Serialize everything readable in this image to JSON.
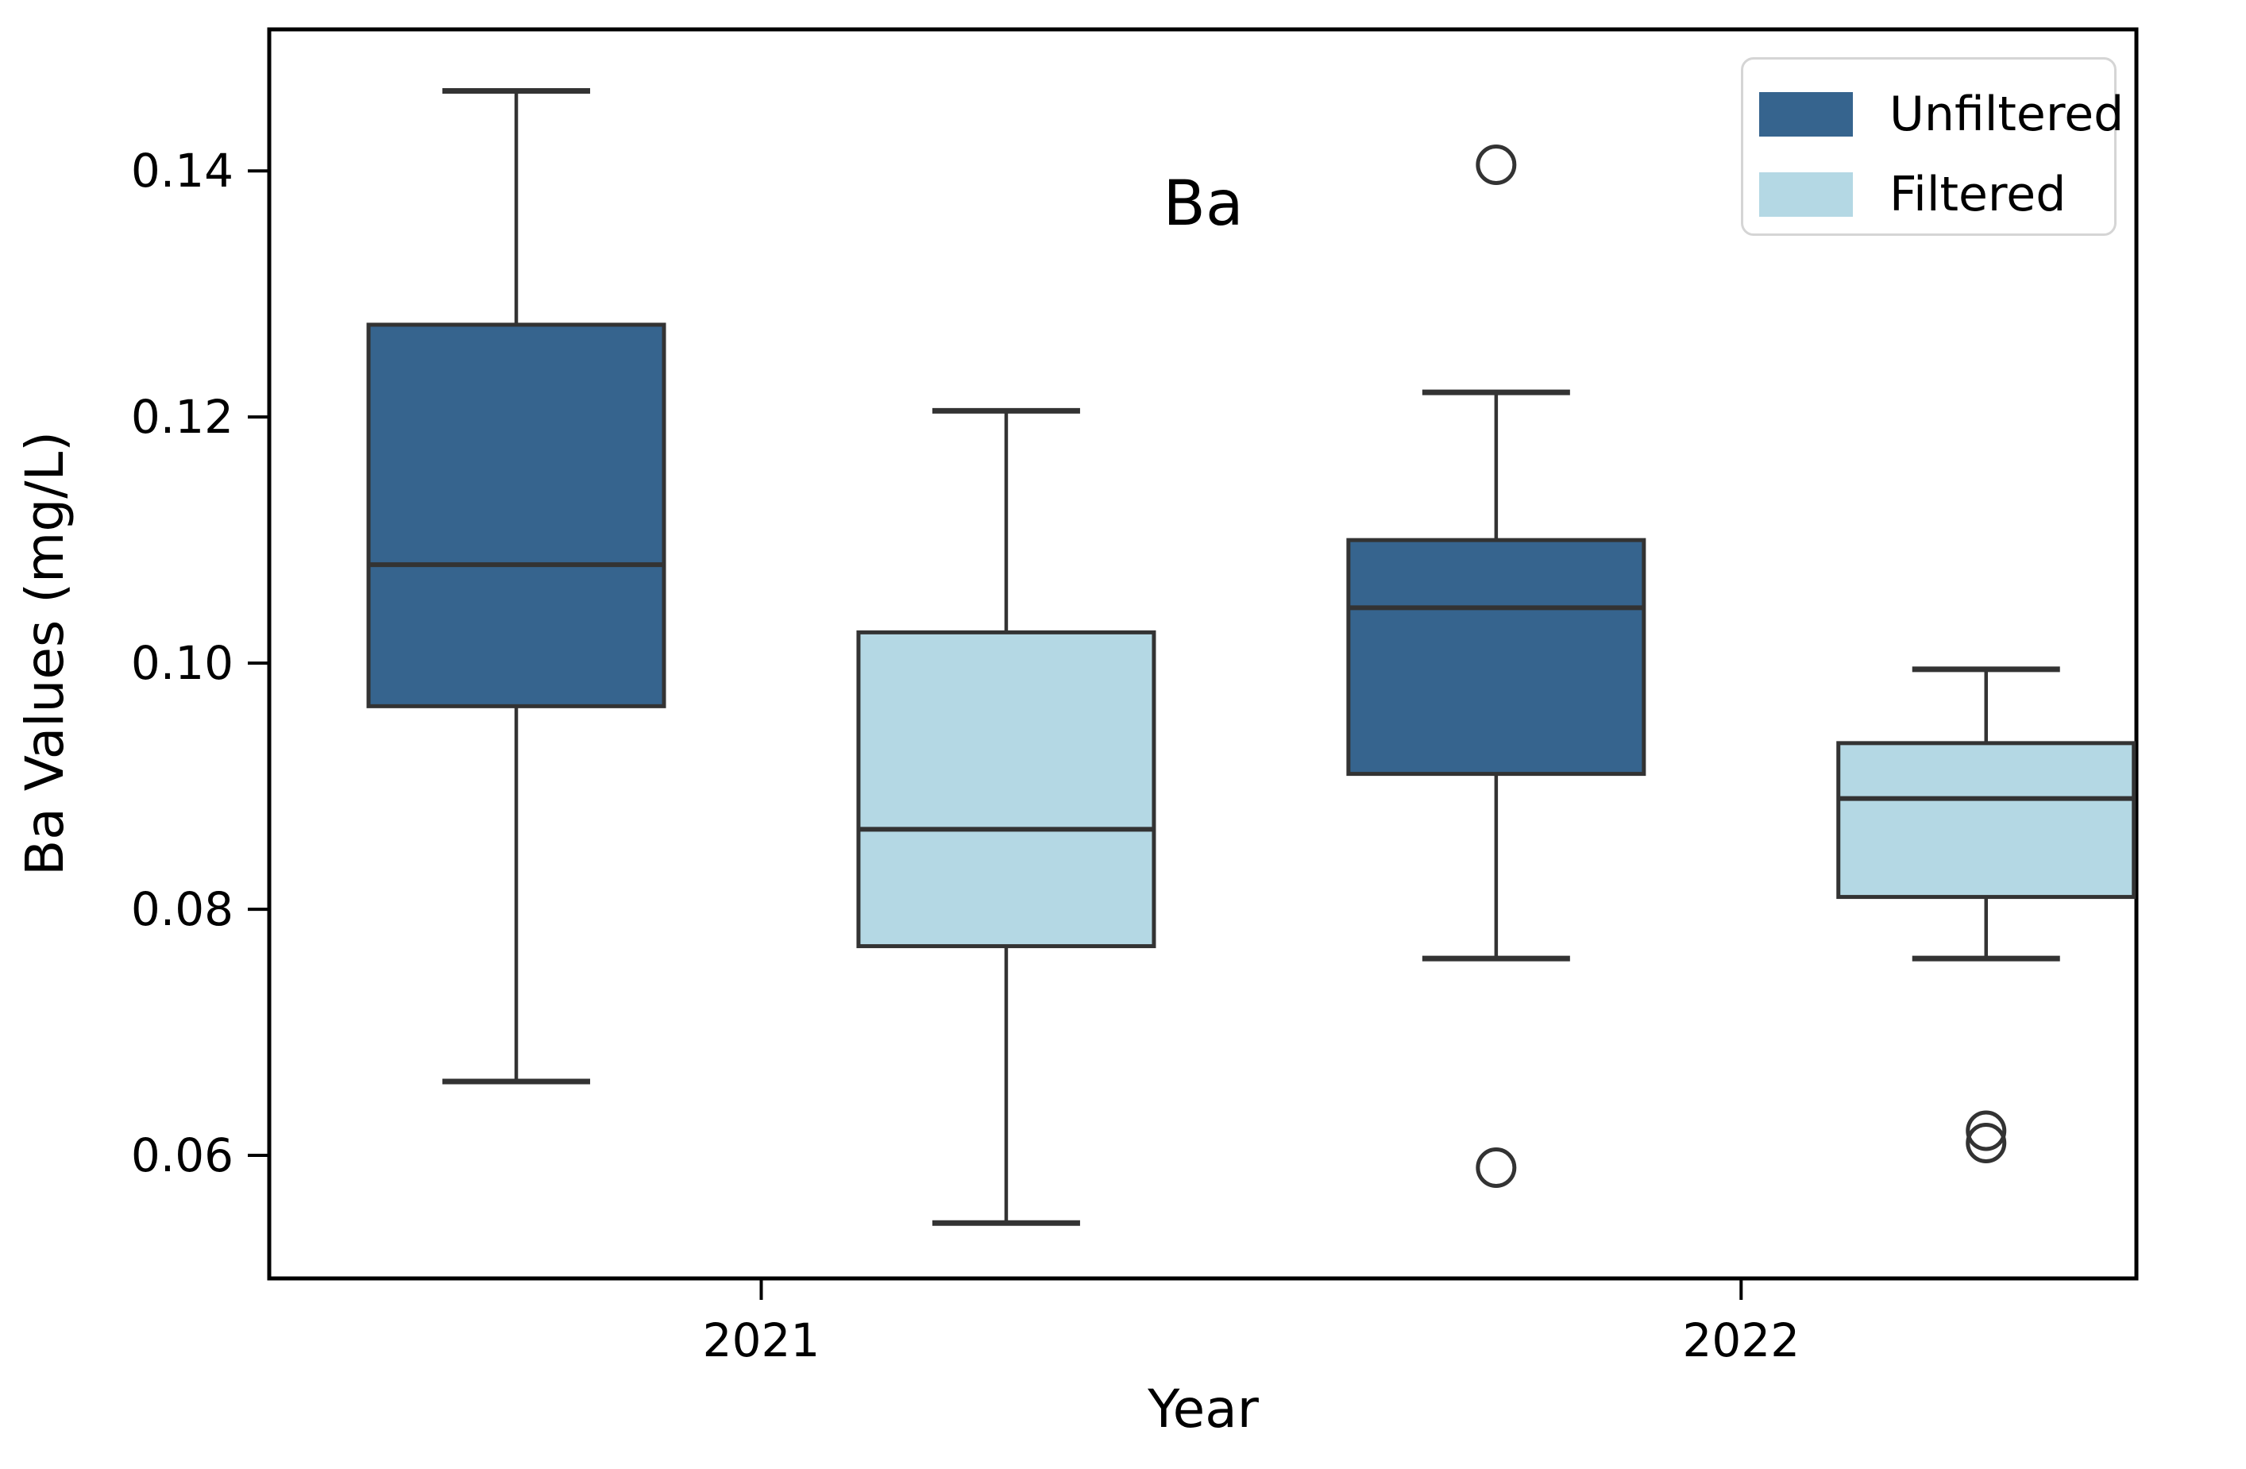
{
  "figure": {
    "title": "Ba",
    "xlabel": "Year",
    "ylabel": "Ba Values (mg/L)"
  },
  "legend": {
    "items": [
      {
        "label": "Unfiltered",
        "color": "#36648e"
      },
      {
        "label": "Filtered",
        "color": "#b4d8e4"
      }
    ]
  },
  "colors": {
    "unfiltered_fill": "#36648e",
    "filtered_fill": "#b4d8e4",
    "line_color": "#333333",
    "axis_color": "#000000",
    "legend_border": "#d5d5d5"
  },
  "chart_data": {
    "type": "boxplot",
    "title": "Ba",
    "xlabel": "Year",
    "ylabel": "Ba Values (mg/L)",
    "categories": [
      "2021",
      "2022"
    ],
    "ylim": [
      0.05,
      0.1515
    ],
    "yticks": [
      0.06,
      0.08,
      0.1,
      0.12,
      0.14
    ],
    "ytick_labels": [
      "0.06",
      "0.08",
      "0.10",
      "0.12",
      "0.14"
    ],
    "grid": false,
    "legend_position": "upper right",
    "series": [
      {
        "name": "Unfiltered",
        "color": "#36648e",
        "boxes": [
          {
            "category": "2021",
            "whislo": 0.066,
            "q1": 0.0965,
            "med": 0.108,
            "q3": 0.1275,
            "whishi": 0.1465,
            "outliers": []
          },
          {
            "category": "2022",
            "whislo": 0.076,
            "q1": 0.091,
            "med": 0.1045,
            "q3": 0.11,
            "whishi": 0.122,
            "outliers": [
              0.1405,
              0.059
            ]
          }
        ]
      },
      {
        "name": "Filtered",
        "color": "#b4d8e4",
        "boxes": [
          {
            "category": "2021",
            "whislo": 0.0545,
            "q1": 0.077,
            "med": 0.0865,
            "q3": 0.1025,
            "whishi": 0.1205,
            "outliers": []
          },
          {
            "category": "2022",
            "whislo": 0.076,
            "q1": 0.081,
            "med": 0.089,
            "q3": 0.0935,
            "whishi": 0.0995,
            "outliers": [
              0.062,
              0.061
            ]
          }
        ]
      }
    ]
  }
}
